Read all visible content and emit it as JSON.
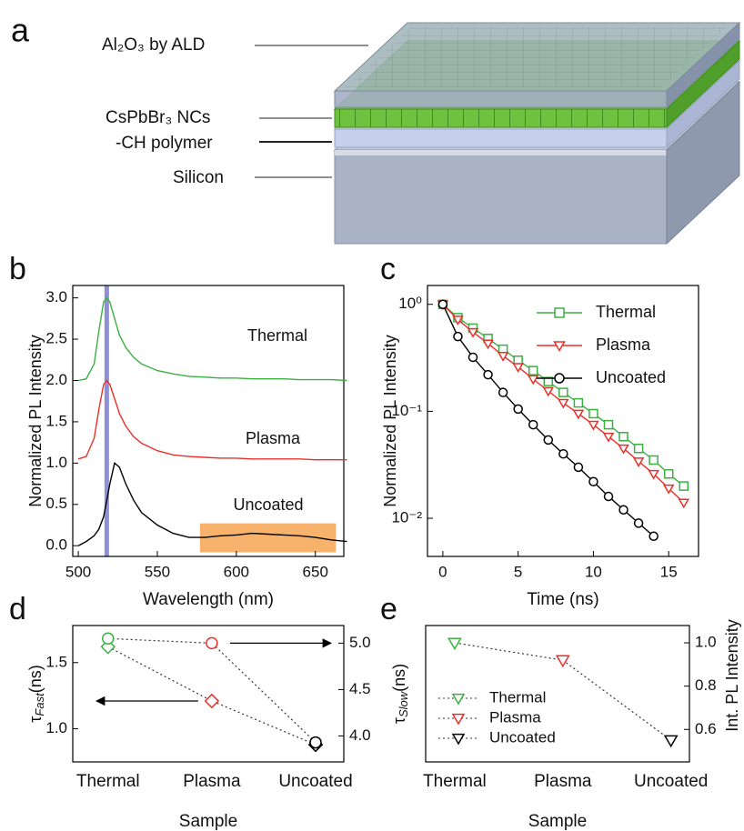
{
  "diagram": {
    "label": "a",
    "layers": [
      "Al₂O₃ by ALD",
      "CsPbBr₃ NCs",
      "-CH polymer",
      "Silicon"
    ]
  },
  "chart_data": [
    {
      "type": "line",
      "panel": "b",
      "xlabel": "Wavelength (nm)",
      "ylabel": "Normalized PL Intensity",
      "x": [
        500,
        505,
        510,
        513,
        516,
        518,
        520,
        523,
        526,
        530,
        535,
        540,
        550,
        560,
        570,
        580,
        590,
        600,
        610,
        620,
        630,
        640,
        650,
        660,
        670
      ],
      "xlim": [
        496.5,
        668
      ],
      "xticks": [
        500,
        550,
        600,
        650
      ],
      "ylim": [
        -0.13,
        3.15
      ],
      "yticks": [
        {
          "value": 0,
          "label": "0.0"
        },
        {
          "value": 0.5,
          "label": "0.5"
        },
        {
          "value": 1,
          "label": "1.0"
        },
        {
          "value": 1.5,
          "label": "1.5"
        },
        {
          "value": 2,
          "label": "2.0"
        },
        {
          "value": 2.5,
          "label": "2.5"
        },
        {
          "value": 3,
          "label": "3.0"
        }
      ],
      "highlight_line": {
        "x": 518,
        "color": "#8f8fd6"
      },
      "highlight_band": {
        "x": [
          577,
          663
        ],
        "y": [
          -0.08,
          0.27
        ],
        "color": "#f7b36b"
      },
      "series": [
        {
          "name": "Thermal",
          "color": "#3cb043",
          "values": [
            2.0,
            2.02,
            2.2,
            2.6,
            2.95,
            3.0,
            2.95,
            2.75,
            2.55,
            2.4,
            2.28,
            2.2,
            2.12,
            2.08,
            2.05,
            2.04,
            2.03,
            2.03,
            2.02,
            2.02,
            2.02,
            2.01,
            2.01,
            2.01,
            2.0
          ]
        },
        {
          "name": "Plasma",
          "color": "#e8302a",
          "values": [
            1.05,
            1.08,
            1.3,
            1.65,
            1.95,
            2.0,
            1.95,
            1.78,
            1.6,
            1.45,
            1.32,
            1.24,
            1.15,
            1.1,
            1.08,
            1.07,
            1.06,
            1.06,
            1.05,
            1.05,
            1.05,
            1.05,
            1.04,
            1.04,
            1.04
          ]
        },
        {
          "name": "Uncoated",
          "color": "#000000",
          "values": [
            0.0,
            0.05,
            0.12,
            0.2,
            0.35,
            0.55,
            0.75,
            1.0,
            0.95,
            0.75,
            0.55,
            0.4,
            0.25,
            0.15,
            0.1,
            0.1,
            0.12,
            0.13,
            0.15,
            0.14,
            0.13,
            0.12,
            0.1,
            0.07,
            0.05
          ]
        }
      ]
    },
    {
      "type": "line",
      "panel": "c",
      "log_y": true,
      "xlabel": "Time (ns)",
      "ylabel": "Normalized PL Intensity",
      "x": [
        0,
        1,
        2,
        3,
        4,
        5,
        6,
        7,
        8,
        9,
        10,
        11,
        12,
        13,
        14,
        15,
        16
      ],
      "xlim": [
        -1.02,
        16.98
      ],
      "xticks": [
        0,
        5,
        10,
        15
      ],
      "ylim": [
        0.0044,
        1.5
      ],
      "yticks": [
        {
          "value": 0.01,
          "label": "10⁻²"
        },
        {
          "value": 0.1,
          "label": "10⁻¹"
        },
        {
          "value": 1,
          "label": "10⁰"
        }
      ],
      "legend": "upper right",
      "series": [
        {
          "name": "Thermal",
          "color": "#3cb043",
          "marker": "square",
          "values": [
            1.0,
            0.75,
            0.6,
            0.48,
            0.38,
            0.3,
            0.24,
            0.19,
            0.15,
            0.12,
            0.095,
            0.075,
            0.058,
            0.045,
            0.035,
            0.026,
            0.02
          ]
        },
        {
          "name": "Plasma",
          "color": "#e8302a",
          "marker": "triangle-down",
          "values": [
            1.0,
            0.72,
            0.55,
            0.43,
            0.33,
            0.26,
            0.2,
            0.155,
            0.12,
            0.095,
            0.075,
            0.058,
            0.045,
            0.034,
            0.026,
            0.019,
            0.014
          ]
        },
        {
          "name": "Uncoated",
          "color": "#000000",
          "marker": "circle",
          "values": [
            1.0,
            0.5,
            0.32,
            0.22,
            0.15,
            0.105,
            0.075,
            0.054,
            0.04,
            0.03,
            0.022,
            0.016,
            0.012,
            0.009,
            0.0068,
            null,
            null
          ]
        }
      ]
    },
    {
      "type": "scatter",
      "panel": "d",
      "categories": [
        "Thermal",
        "Plasma",
        "Uncoated"
      ],
      "category_colors": [
        "#3cb043",
        "#e8302a",
        "#000000"
      ],
      "xlabel": "Sample",
      "ylabel": "τ",
      "ylabel_sub": "Fast",
      "ylabel_unit": "(ns)",
      "ylim": [
        0.75,
        1.78
      ],
      "yticks": [
        {
          "value": 1,
          "label": "1.0"
        },
        {
          "value": 1.5,
          "label": "1.5"
        }
      ],
      "y2lim": [
        3.72,
        5.19
      ],
      "y2ticks": [
        {
          "value": 4,
          "label": "4.0"
        },
        {
          "value": 4.5,
          "label": "4.5"
        },
        {
          "value": 5,
          "label": "5.0"
        }
      ],
      "series": [
        {
          "marker": "diamond",
          "values": [
            1.62,
            1.21,
            0.88
          ]
        },
        {
          "marker": "circle",
          "axis": "y2",
          "values": [
            5.05,
            5.0,
            3.93
          ]
        }
      ]
    },
    {
      "type": "scatter",
      "panel": "e",
      "categories": [
        "Thermal",
        "Plasma",
        "Uncoated"
      ],
      "category_colors": [
        "#3cb043",
        "#e8302a",
        "#000000"
      ],
      "xlabel": "Sample",
      "ylabel": "τ",
      "ylabel_sub": "Slow",
      "ylabel_unit": "(ns)",
      "y2label": "Int. PL Intensity",
      "y2lim": [
        0.45,
        1.08
      ],
      "y2ticks": [
        {
          "value": 0.6,
          "label": "0.6"
        },
        {
          "value": 0.8,
          "label": "0.8"
        },
        {
          "value": 1,
          "label": "1.0"
        }
      ],
      "legend": "center left",
      "series": [
        {
          "marker": "triangle-down",
          "axis": "y2",
          "values": [
            1.0,
            0.92,
            0.55
          ]
        }
      ]
    }
  ]
}
